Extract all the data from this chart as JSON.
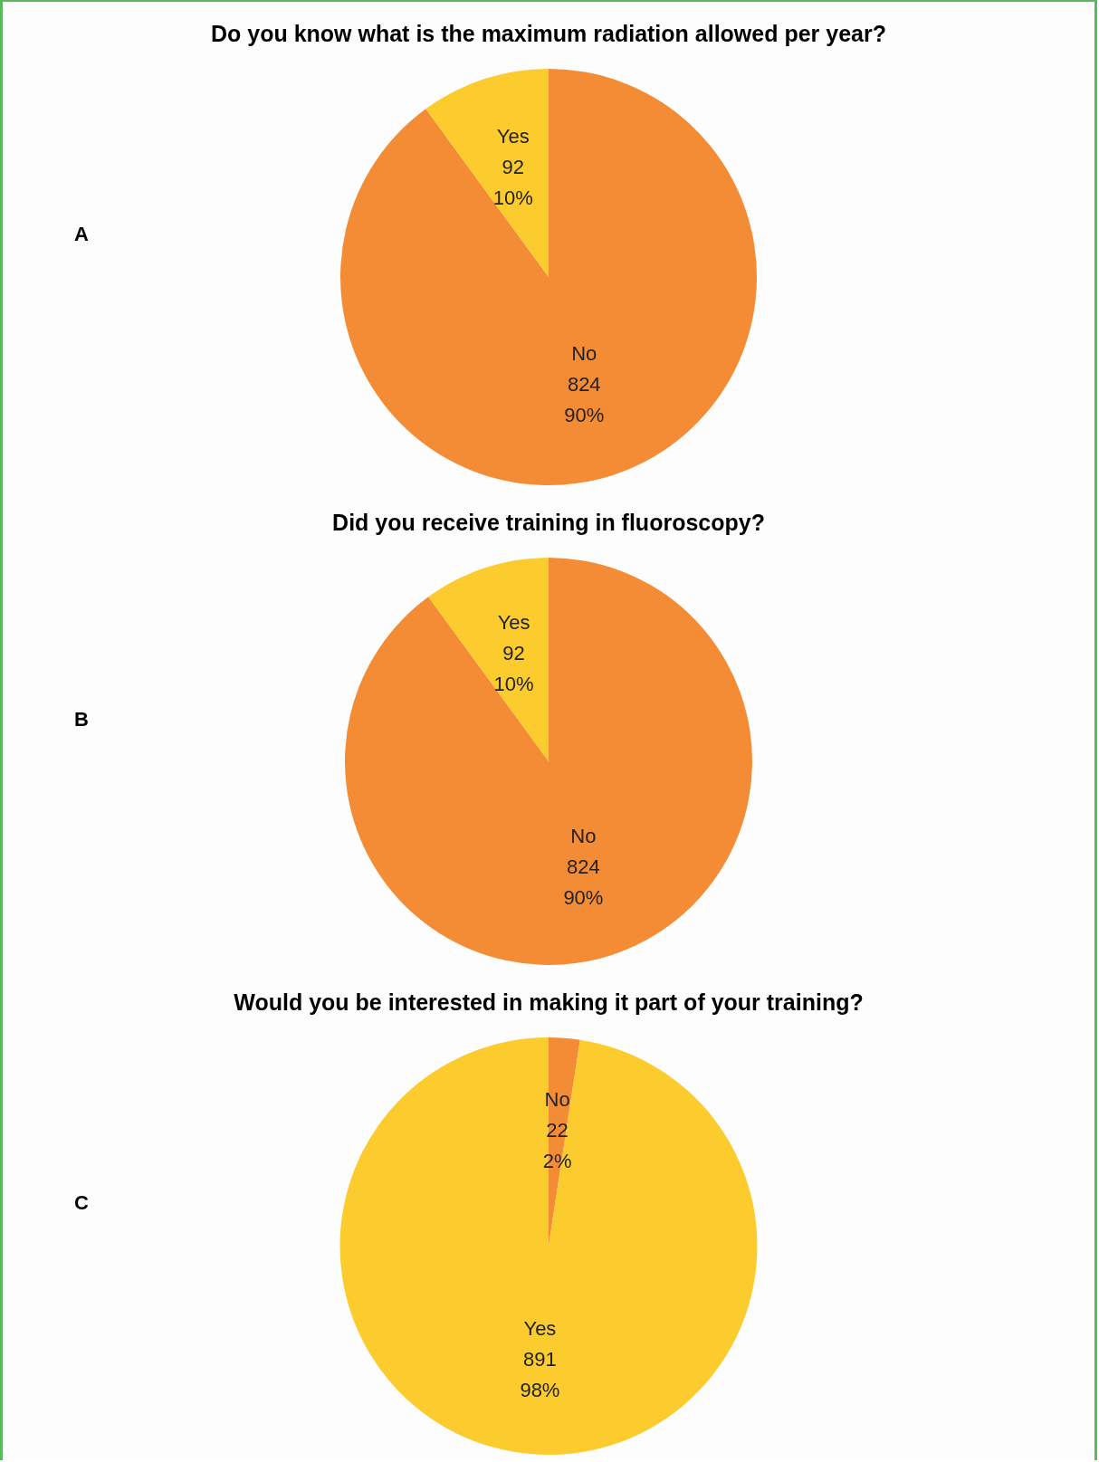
{
  "chart_data": [
    {
      "type": "pie",
      "title": "Do you know what is the maximum radiation allowed per year?",
      "categories": [
        "No",
        "Yes"
      ],
      "values": [
        824,
        92
      ],
      "colors": [
        "#f48c36",
        "#fccb2e"
      ],
      "value_labels": [
        "824\n90%",
        "92\n10%"
      ],
      "annotations": [
        "A"
      ],
      "legend": false
    },
    {
      "type": "pie",
      "title": "Did you receive training in fluoroscopy?",
      "categories": [
        "No",
        "Yes"
      ],
      "values": [
        824,
        92
      ],
      "colors": [
        "#f48c36",
        "#fccb2e"
      ],
      "value_labels": [
        "824\n90%",
        "92\n10%"
      ],
      "annotations": [
        "B"
      ],
      "legend": false
    },
    {
      "type": "pie",
      "title": "Would you be interested in making it part of your training?",
      "categories": [
        "No",
        "Yes"
      ],
      "values": [
        22,
        891
      ],
      "colors": [
        "#f48c36",
        "#fccb2e"
      ],
      "value_labels": [
        "22\n2%",
        "891\n98%"
      ],
      "annotations": [
        "C"
      ],
      "legend": false
    }
  ]
}
